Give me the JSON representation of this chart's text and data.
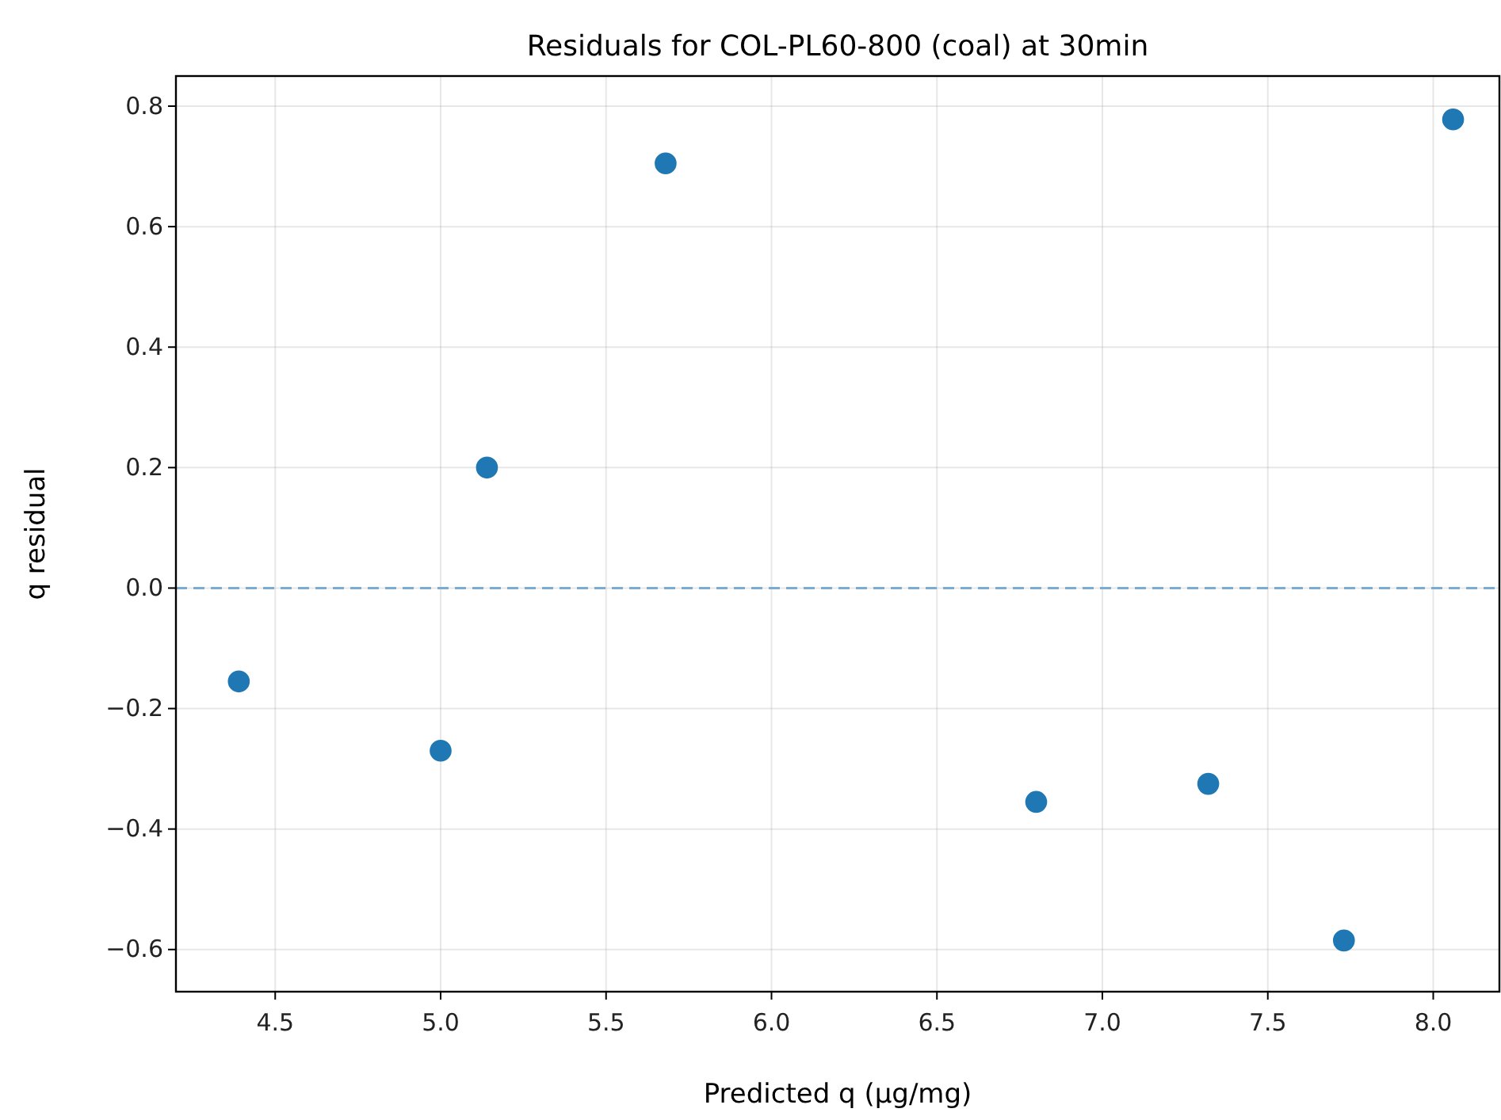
{
  "chart_data": {
    "type": "scatter",
    "title": "Residuals for COL-PL60-800 (coal) at 30min",
    "xlabel": "Predicted q (μg/mg)",
    "ylabel": "q residual",
    "x": [
      4.39,
      5.0,
      5.14,
      5.68,
      6.8,
      7.32,
      7.73,
      8.06
    ],
    "series": [
      {
        "color": "#1f77b4",
        "values": [
          -0.155,
          -0.27,
          0.2,
          0.705,
          -0.355,
          -0.325,
          -0.585,
          0.778
        ]
      }
    ],
    "xlim": [
      4.2,
      8.2
    ],
    "xticks": [
      {
        "value": 4.5,
        "label": "4.5"
      },
      {
        "value": 5,
        "label": "5.0"
      },
      {
        "value": 5.5,
        "label": "5.5"
      },
      {
        "value": 6,
        "label": "6.0"
      },
      {
        "value": 6.5,
        "label": "6.5"
      },
      {
        "value": 7,
        "label": "7.0"
      },
      {
        "value": 7.5,
        "label": "7.5"
      },
      {
        "value": 8,
        "label": "8.0"
      }
    ],
    "ylim": [
      -0.67,
      0.85
    ],
    "yticks": [
      {
        "value": -0.6,
        "label": "−0.6"
      },
      {
        "value": -0.4,
        "label": "−0.4"
      },
      {
        "value": -0.2,
        "label": "−0.2"
      },
      {
        "value": 0,
        "label": "0.0"
      },
      {
        "value": 0.2,
        "label": "0.2"
      },
      {
        "value": 0.4,
        "label": "0.4"
      },
      {
        "value": 0.6,
        "label": "0.6"
      },
      {
        "value": 0.8,
        "label": "0.8"
      }
    ],
    "ref_lines": [
      {
        "axis": "y",
        "value": 0,
        "color": "#79abd3",
        "line_style": "dashed"
      }
    ],
    "grid": true,
    "marker": "circle"
  }
}
